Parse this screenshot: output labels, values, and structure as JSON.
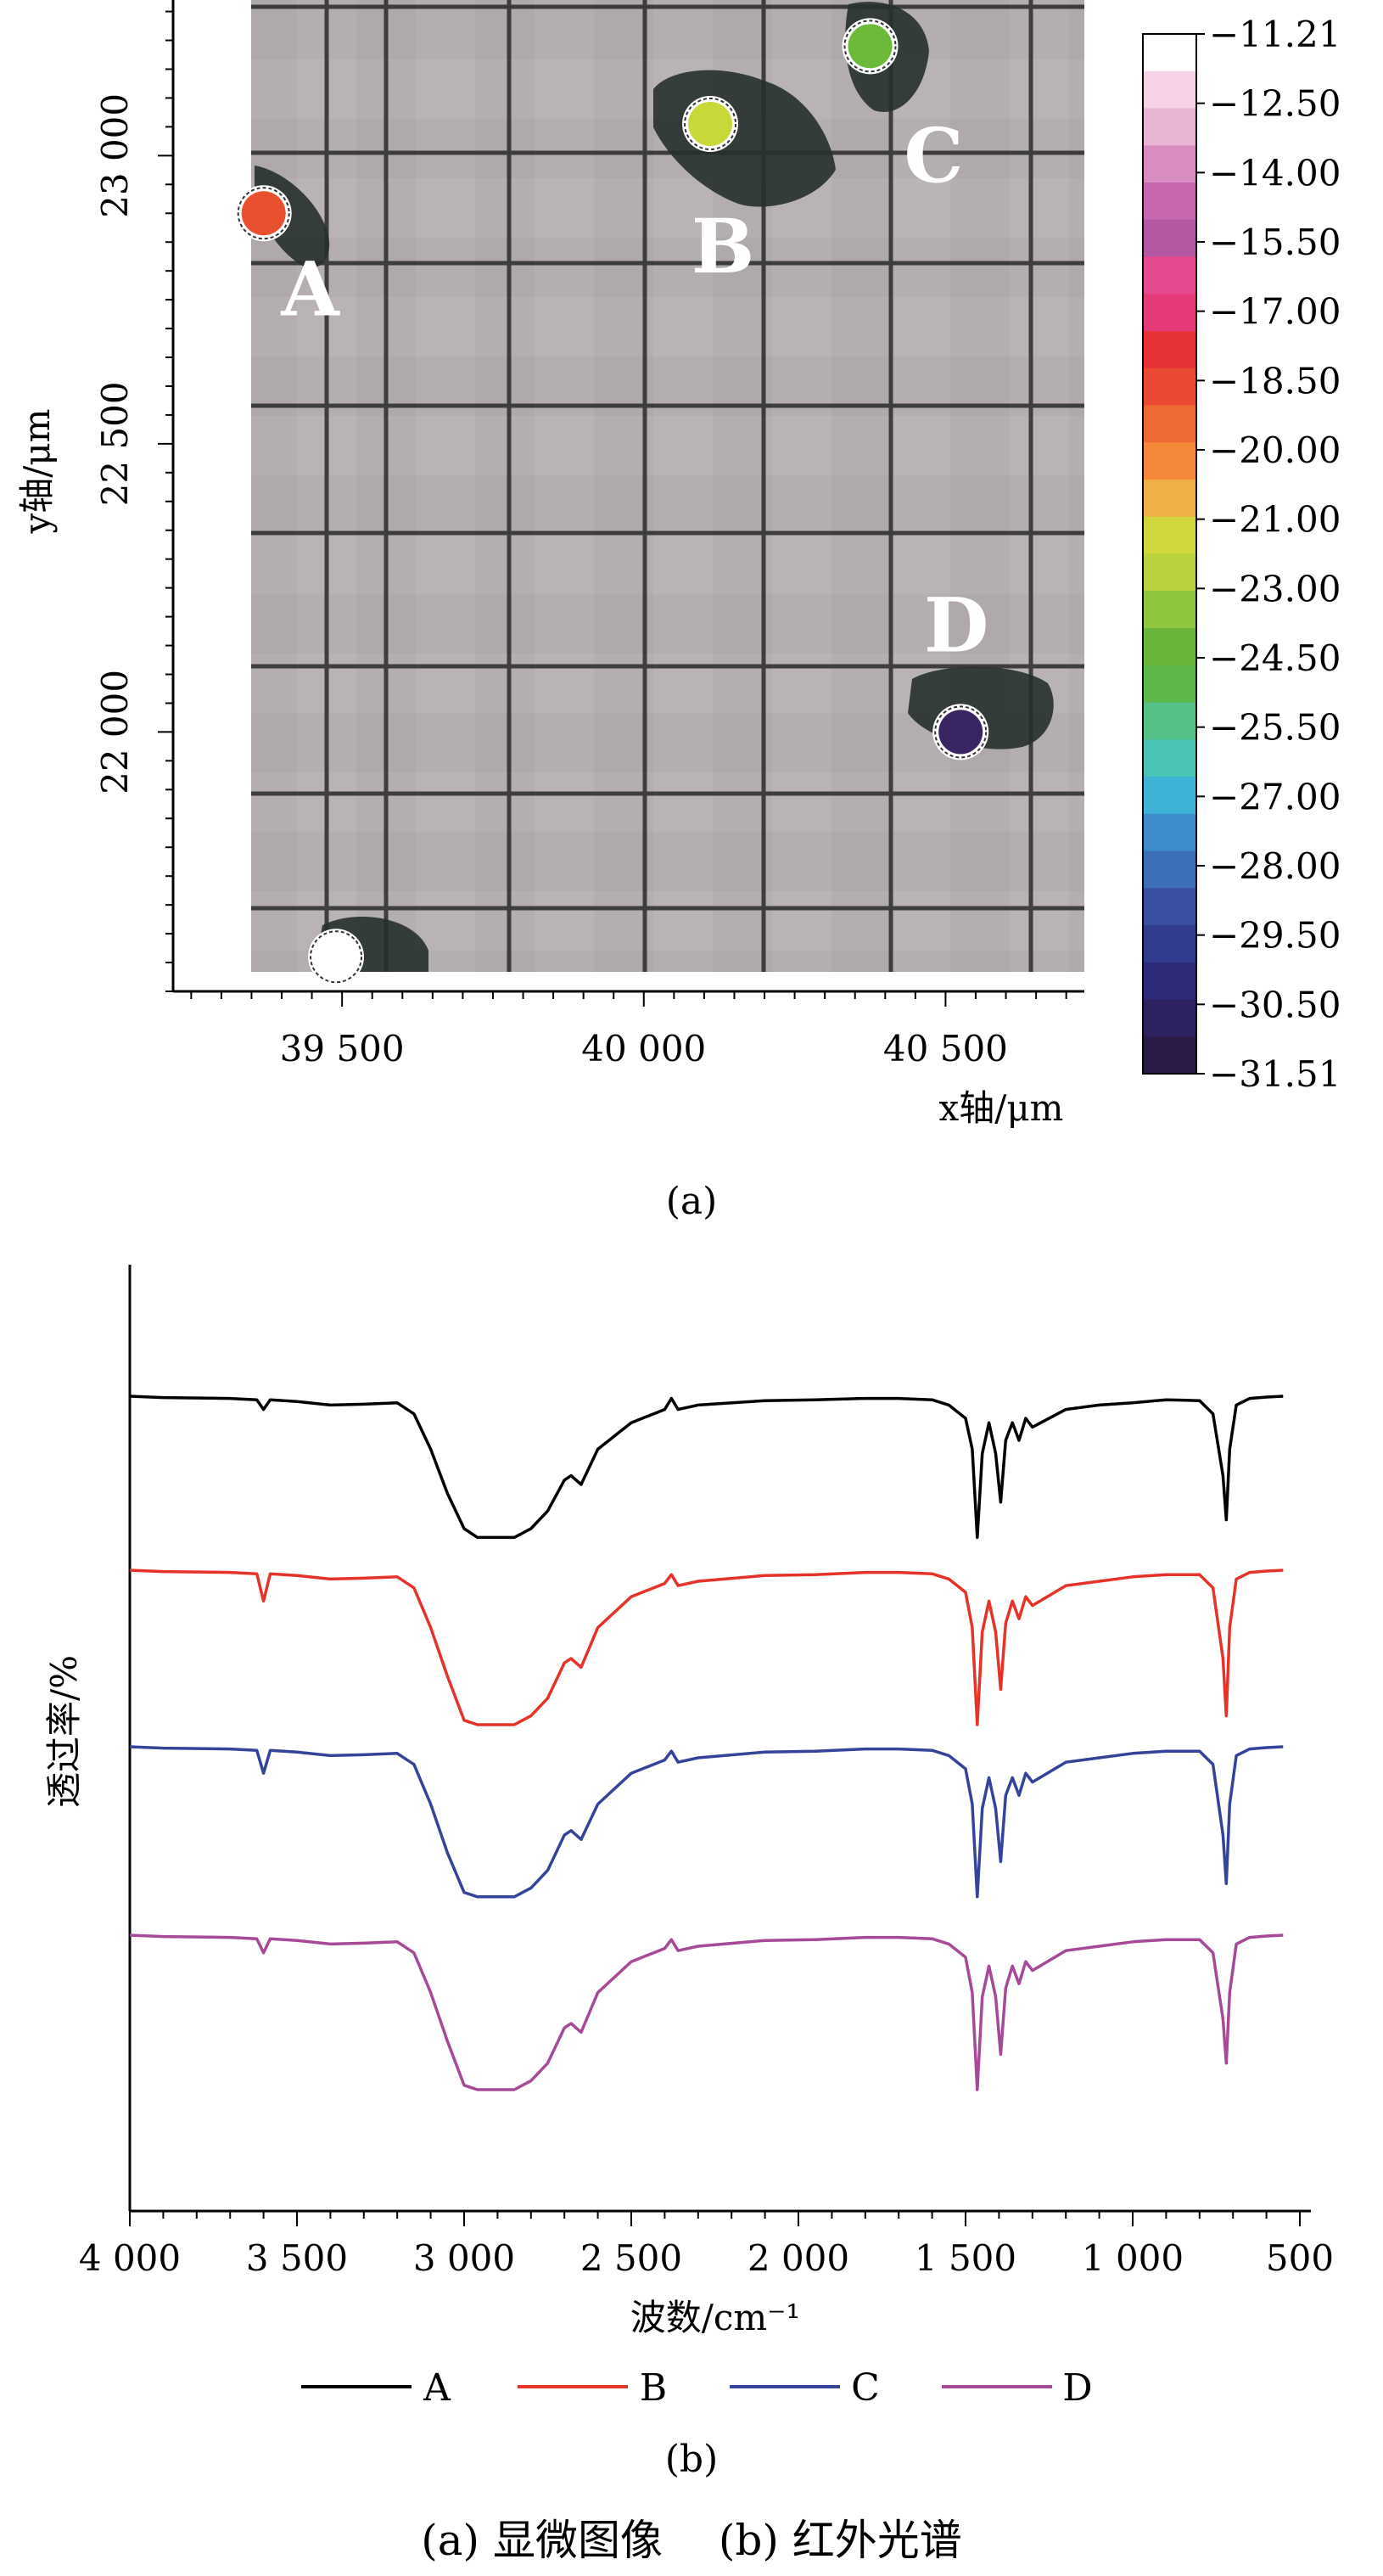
{
  "panel_a_label": "(a)",
  "panel_b_label": "(b)",
  "caption": "(a) 显微图像　 (b) 红外光谱",
  "chart_data": [
    {
      "type": "scatter",
      "title": "",
      "xlabel": "x轴/μm",
      "ylabel": "y轴/μm",
      "xlim": [
        39220,
        40730
      ],
      "ylim": [
        21550,
        23270
      ],
      "x_ticks": [
        39500,
        40000,
        40500
      ],
      "x_tick_labels": [
        "39 500",
        "40 000",
        "40 500"
      ],
      "y_ticks": [
        22000,
        22500,
        23000
      ],
      "y_tick_labels": [
        "22 000",
        "22 500",
        "23 000"
      ],
      "background": "optical microscope image with dark grid lines and dark particles",
      "points": [
        {
          "label": "A",
          "x": 39370,
          "y": 22900,
          "value": -17.5,
          "color": "#e8502f"
        },
        {
          "label": "B",
          "x": 40110,
          "y": 23055,
          "value": -20.8,
          "color": "#c7d838"
        },
        {
          "label": "C",
          "x": 40375,
          "y": 23190,
          "value": -23.0,
          "color": "#6cb93a"
        },
        {
          "label": "D",
          "x": 40525,
          "y": 22000,
          "value": -31.0,
          "color": "#3a2563"
        },
        {
          "label": "",
          "x": 39490,
          "y": 21610,
          "value": -11.21,
          "color": "#ffffff"
        }
      ],
      "colorbar": {
        "min": -31.51,
        "max": -11.21,
        "tick_labels": [
          "-11.21",
          "-12.50",
          "-14.00",
          "-15.50",
          "-17.00",
          "-18.50",
          "-20.00",
          "-21.00",
          "-23.00",
          "-24.50",
          "-25.50",
          "-27.00",
          "-28.00",
          "-29.50",
          "-30.50",
          "-31.51"
        ],
        "colors": [
          "#ffffff",
          "#f6d2e6",
          "#eab4d4",
          "#d98cc0",
          "#c566ae",
          "#b458a3",
          "#e54a8e",
          "#e53a78",
          "#e8323a",
          "#ea4a34",
          "#ee6a35",
          "#f5893a",
          "#f1b047",
          "#cfd73d",
          "#b8d33b",
          "#8ec63d",
          "#6ab43a",
          "#5bb849",
          "#54c086",
          "#48c3b4",
          "#3fb3d7",
          "#3d8dcc",
          "#3c6fb8",
          "#38509f",
          "#323c8e",
          "#2e2a7a",
          "#2e2260",
          "#2a1a46"
        ]
      }
    },
    {
      "type": "line",
      "title": "",
      "xlabel": "波数/cm⁻¹",
      "ylabel": "透过率/%",
      "xlim": [
        4000,
        500
      ],
      "x_ticks": [
        4000,
        3500,
        3000,
        2500,
        2000,
        1500,
        1000,
        500
      ],
      "x_tick_labels": [
        "4 000",
        "3 500",
        "3 000",
        "2 500",
        "2 000",
        "1 500",
        "1 000",
        "500"
      ],
      "y_ticks_shown": false,
      "legend_position": "bottom",
      "series": [
        {
          "name": "A",
          "color": "#000000",
          "offset": 0,
          "x": [
            4000,
            3900,
            3700,
            3620,
            3600,
            3580,
            3500,
            3400,
            3300,
            3200,
            3150,
            3100,
            3050,
            3000,
            2960,
            2920,
            2880,
            2850,
            2800,
            2750,
            2700,
            2680,
            2650,
            2600,
            2500,
            2400,
            2380,
            2360,
            2300,
            2100,
            1950,
            1800,
            1700,
            1600,
            1550,
            1500,
            1480,
            1465,
            1450,
            1430,
            1410,
            1395,
            1380,
            1360,
            1340,
            1320,
            1300,
            1200,
            1100,
            1000,
            900,
            800,
            760,
            730,
            720,
            710,
            690,
            650,
            600,
            550
          ],
          "y": [
            0,
            -0.03,
            -0.05,
            -0.08,
            -0.3,
            -0.08,
            -0.12,
            -0.2,
            -0.18,
            -0.15,
            -0.4,
            -1.2,
            -2.2,
            -3,
            -3.2,
            -3.2,
            -3.2,
            -3.2,
            -3.0,
            -2.6,
            -1.9,
            -1.8,
            -2.0,
            -1.2,
            -0.6,
            -0.3,
            -0.05,
            -0.3,
            -0.2,
            -0.1,
            -0.08,
            -0.05,
            -0.05,
            -0.08,
            -0.2,
            -0.5,
            -1.2,
            -3.2,
            -1.3,
            -0.6,
            -1.3,
            -2.4,
            -1.0,
            -0.6,
            -1.0,
            -0.5,
            -0.7,
            -0.3,
            -0.2,
            -0.15,
            -0.08,
            -0.1,
            -0.4,
            -1.8,
            -2.8,
            -1.2,
            -0.2,
            -0.05,
            -0.02,
            0
          ]
        },
        {
          "name": "B",
          "color": "#e6332a",
          "offset": 1,
          "x": [
            4000,
            3900,
            3700,
            3620,
            3600,
            3580,
            3500,
            3400,
            3300,
            3200,
            3150,
            3100,
            3050,
            3000,
            2960,
            2920,
            2880,
            2850,
            2800,
            2750,
            2700,
            2680,
            2650,
            2600,
            2500,
            2400,
            2380,
            2360,
            2300,
            2100,
            1950,
            1800,
            1700,
            1600,
            1550,
            1500,
            1480,
            1465,
            1450,
            1430,
            1410,
            1395,
            1380,
            1360,
            1340,
            1320,
            1300,
            1200,
            1100,
            1000,
            900,
            800,
            760,
            730,
            720,
            710,
            690,
            650,
            600,
            550
          ],
          "y": [
            0,
            -0.03,
            -0.05,
            -0.08,
            -0.7,
            -0.08,
            -0.12,
            -0.2,
            -0.18,
            -0.15,
            -0.4,
            -1.3,
            -2.4,
            -3.4,
            -3.5,
            -3.5,
            -3.5,
            -3.5,
            -3.3,
            -2.9,
            -2.1,
            -2.0,
            -2.2,
            -1.3,
            -0.6,
            -0.3,
            -0.1,
            -0.35,
            -0.25,
            -0.12,
            -0.1,
            -0.05,
            -0.05,
            -0.08,
            -0.2,
            -0.5,
            -1.3,
            -3.5,
            -1.4,
            -0.7,
            -1.4,
            -2.7,
            -1.2,
            -0.7,
            -1.1,
            -0.6,
            -0.8,
            -0.35,
            -0.25,
            -0.15,
            -0.1,
            -0.1,
            -0.4,
            -2.0,
            -3.3,
            -1.3,
            -0.2,
            -0.05,
            -0.02,
            0
          ]
        },
        {
          "name": "C",
          "color": "#35449a",
          "offset": 2,
          "x": [
            4000,
            3900,
            3700,
            3620,
            3600,
            3580,
            3500,
            3400,
            3300,
            3200,
            3150,
            3100,
            3050,
            3000,
            2960,
            2920,
            2880,
            2850,
            2800,
            2750,
            2700,
            2680,
            2650,
            2600,
            2500,
            2400,
            2380,
            2360,
            2300,
            2100,
            1950,
            1800,
            1700,
            1600,
            1550,
            1500,
            1480,
            1465,
            1450,
            1430,
            1410,
            1395,
            1380,
            1360,
            1340,
            1320,
            1300,
            1200,
            1100,
            1000,
            900,
            800,
            760,
            730,
            720,
            710,
            690,
            650,
            600,
            550
          ],
          "y": [
            0,
            -0.03,
            -0.05,
            -0.08,
            -0.6,
            -0.08,
            -0.12,
            -0.2,
            -0.18,
            -0.15,
            -0.4,
            -1.3,
            -2.4,
            -3.3,
            -3.4,
            -3.4,
            -3.4,
            -3.4,
            -3.2,
            -2.8,
            -2.0,
            -1.9,
            -2.1,
            -1.3,
            -0.6,
            -0.3,
            -0.1,
            -0.35,
            -0.25,
            -0.12,
            -0.1,
            -0.05,
            -0.05,
            -0.08,
            -0.2,
            -0.5,
            -1.3,
            -3.4,
            -1.4,
            -0.7,
            -1.4,
            -2.6,
            -1.1,
            -0.7,
            -1.1,
            -0.6,
            -0.8,
            -0.35,
            -0.25,
            -0.15,
            -0.1,
            -0.1,
            -0.4,
            -2.0,
            -3.1,
            -1.3,
            -0.2,
            -0.05,
            -0.02,
            0
          ]
        },
        {
          "name": "D",
          "color": "#a64a97",
          "offset": 3,
          "x": [
            4000,
            3900,
            3700,
            3620,
            3600,
            3580,
            3500,
            3400,
            3300,
            3200,
            3150,
            3100,
            3050,
            3000,
            2960,
            2920,
            2880,
            2850,
            2800,
            2750,
            2700,
            2680,
            2650,
            2600,
            2500,
            2400,
            2380,
            2360,
            2300,
            2100,
            1950,
            1800,
            1700,
            1600,
            1550,
            1500,
            1480,
            1465,
            1450,
            1430,
            1410,
            1395,
            1380,
            1360,
            1340,
            1320,
            1300,
            1200,
            1100,
            1000,
            900,
            800,
            760,
            730,
            720,
            710,
            690,
            650,
            600,
            550
          ],
          "y": [
            0,
            -0.03,
            -0.05,
            -0.08,
            -0.4,
            -0.08,
            -0.12,
            -0.2,
            -0.18,
            -0.15,
            -0.4,
            -1.3,
            -2.4,
            -3.4,
            -3.5,
            -3.5,
            -3.5,
            -3.5,
            -3.3,
            -2.9,
            -2.1,
            -2.0,
            -2.2,
            -1.3,
            -0.6,
            -0.3,
            -0.1,
            -0.35,
            -0.25,
            -0.12,
            -0.1,
            -0.05,
            -0.05,
            -0.08,
            -0.2,
            -0.5,
            -1.3,
            -3.5,
            -1.4,
            -0.7,
            -1.4,
            -2.7,
            -1.2,
            -0.7,
            -1.1,
            -0.6,
            -0.8,
            -0.35,
            -0.25,
            -0.15,
            -0.1,
            -0.1,
            -0.4,
            -1.9,
            -2.9,
            -1.3,
            -0.2,
            -0.05,
            -0.02,
            0
          ]
        }
      ]
    }
  ]
}
